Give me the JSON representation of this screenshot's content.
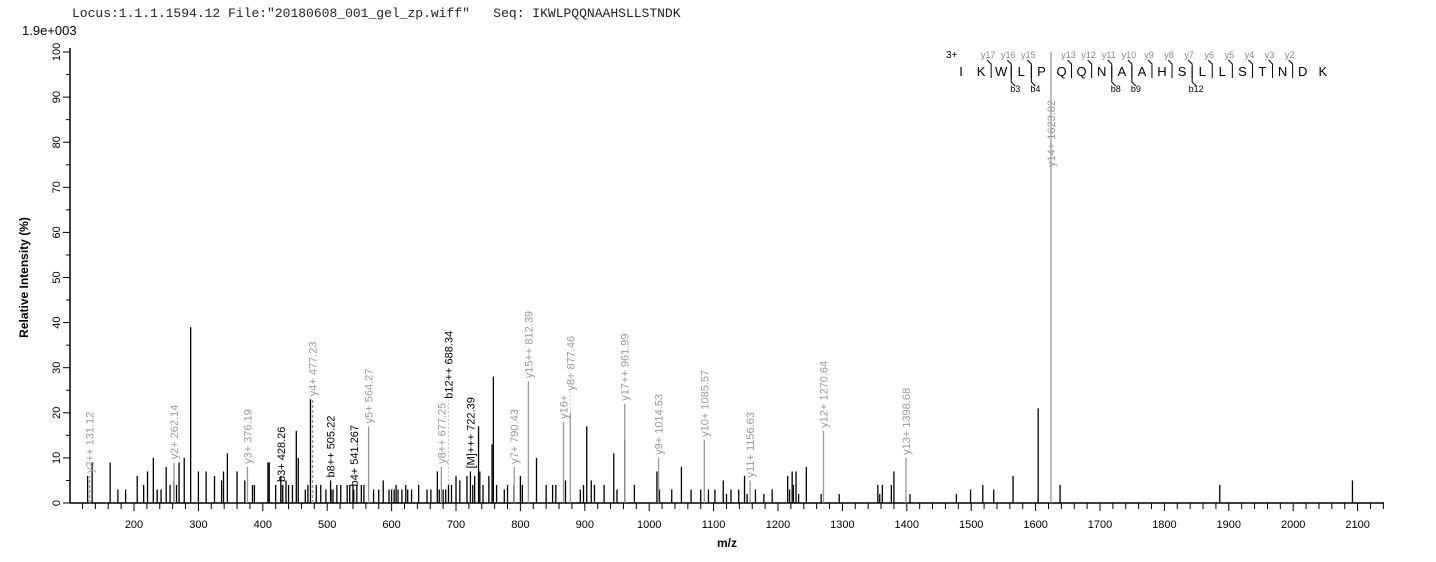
{
  "header": {
    "locus": "Locus:1.1.1.1594.12",
    "file": "File:\"20180608_001_gel_zp.wiff\"",
    "seq": "Seq: IKWLPQQNAAHSLLSTNDK",
    "scale": "1.9e+003"
  },
  "chart_data": {
    "type": "bar",
    "xlabel": "m/z",
    "ylabel": "Relative   Intensity (%)",
    "xlim": [
      100,
      2140
    ],
    "ylim": [
      0,
      100
    ],
    "xticks": [
      200,
      300,
      400,
      500,
      600,
      700,
      800,
      900,
      1000,
      1100,
      1200,
      1300,
      1400,
      1500,
      1600,
      1700,
      1800,
      1900,
      2000,
      2100
    ],
    "yticks": [
      0,
      10,
      20,
      30,
      40,
      50,
      60,
      70,
      80,
      90,
      100
    ],
    "colors": {
      "unannotated": "#000000",
      "annotated_y": "#999999",
      "annotated_b": "#000000"
    },
    "annotated_peaks": [
      {
        "mz": 131.12,
        "intensity": 6,
        "label": "y2++ 131.12",
        "type": "y",
        "dashed": true
      },
      {
        "mz": 262.14,
        "intensity": 9,
        "label": "y2+ 262.14",
        "type": "y"
      },
      {
        "mz": 376.19,
        "intensity": 8,
        "label": "y3+ 376.19",
        "type": "y"
      },
      {
        "mz": 428.26,
        "intensity": 4,
        "label": "b3+ 428.26",
        "type": "b"
      },
      {
        "mz": 477.23,
        "intensity": 23,
        "label": "y4+ 477.23",
        "type": "y",
        "dashed": true
      },
      {
        "mz": 505.22,
        "intensity": 5,
        "label": "b8++ 505.22",
        "type": "b"
      },
      {
        "mz": 541.267,
        "intensity": 3,
        "label": "b4+ 541.267",
        "type": "b"
      },
      {
        "mz": 564.27,
        "intensity": 17,
        "label": "y5+ 564.27",
        "type": "y"
      },
      {
        "mz": 677.25,
        "intensity": 8,
        "label": "y8++ 677.25",
        "type": "y"
      },
      {
        "mz": 688.34,
        "intensity": 4,
        "label": "b12++ 688.34",
        "type": "b"
      },
      {
        "mz": 722.39,
        "intensity": 7,
        "label": "[M]+++ 722.39",
        "type": "b"
      },
      {
        "mz": 790.43,
        "intensity": 8,
        "label": "y7+ 790.43",
        "type": "y"
      },
      {
        "mz": 812.39,
        "intensity": 27,
        "label": "y15++ 812.39",
        "type": "y"
      },
      {
        "mz": 866.9,
        "intensity": 18,
        "label": "y16+",
        "type": "y"
      },
      {
        "mz": 877.46,
        "intensity": 20,
        "label": "y8+ 877.46",
        "type": "y"
      },
      {
        "mz": 961.99,
        "intensity": 22,
        "label": "y17++ 961.99",
        "type": "y"
      },
      {
        "mz": 1014.53,
        "intensity": 10,
        "label": "y9+ 1014.53",
        "type": "y"
      },
      {
        "mz": 1085.57,
        "intensity": 14,
        "label": "y10+ 1085.57",
        "type": "y"
      },
      {
        "mz": 1156.63,
        "intensity": 5,
        "label": "y11+ 1156.63",
        "type": "y"
      },
      {
        "mz": 1270.64,
        "intensity": 16,
        "label": "y12+ 1270.64",
        "type": "y"
      },
      {
        "mz": 1398.68,
        "intensity": 10,
        "label": "y13+ 1398.68",
        "type": "y"
      },
      {
        "mz": 1623.82,
        "intensity": 100,
        "label": "y14+ 1623.82",
        "type": "y"
      }
    ],
    "peaks": [
      [
        128,
        6
      ],
      [
        135,
        9
      ],
      [
        163,
        9
      ],
      [
        175,
        3
      ],
      [
        187,
        3
      ],
      [
        205,
        6
      ],
      [
        215,
        4
      ],
      [
        221,
        7
      ],
      [
        230,
        10
      ],
      [
        236,
        3
      ],
      [
        242,
        3
      ],
      [
        250,
        8
      ],
      [
        256,
        4
      ],
      [
        262,
        5
      ],
      [
        266,
        4
      ],
      [
        270,
        9
      ],
      [
        278,
        10
      ],
      [
        288,
        39
      ],
      [
        300,
        7
      ],
      [
        312,
        7
      ],
      [
        325,
        6
      ],
      [
        336,
        5
      ],
      [
        339,
        7
      ],
      [
        345,
        11
      ],
      [
        360,
        7
      ],
      [
        372,
        5
      ],
      [
        384,
        4
      ],
      [
        387,
        4
      ],
      [
        408,
        9
      ],
      [
        410,
        9
      ],
      [
        420,
        4
      ],
      [
        428,
        6
      ],
      [
        431,
        4
      ],
      [
        436,
        5
      ],
      [
        440,
        4
      ],
      [
        446,
        4
      ],
      [
        452,
        16
      ],
      [
        455,
        10
      ],
      [
        466,
        3
      ],
      [
        470,
        4
      ],
      [
        474,
        23
      ],
      [
        483,
        4
      ],
      [
        490,
        4
      ],
      [
        498,
        3
      ],
      [
        506,
        3
      ],
      [
        509,
        3
      ],
      [
        515,
        4
      ],
      [
        521,
        4
      ],
      [
        531,
        4
      ],
      [
        535,
        4
      ],
      [
        540,
        4
      ],
      [
        546,
        4
      ],
      [
        553,
        4
      ],
      [
        557,
        4
      ],
      [
        572,
        3
      ],
      [
        580,
        3
      ],
      [
        587,
        5
      ],
      [
        596,
        3
      ],
      [
        600,
        3
      ],
      [
        604,
        3
      ],
      [
        607,
        4
      ],
      [
        610,
        3
      ],
      [
        616,
        3
      ],
      [
        622,
        4
      ],
      [
        625,
        3
      ],
      [
        631,
        3
      ],
      [
        642,
        4
      ],
      [
        655,
        3
      ],
      [
        661,
        3
      ],
      [
        671,
        7
      ],
      [
        674,
        3
      ],
      [
        680,
        3
      ],
      [
        684,
        3
      ],
      [
        693,
        4
      ],
      [
        700,
        6
      ],
      [
        706,
        5
      ],
      [
        717,
        6
      ],
      [
        726,
        4
      ],
      [
        729,
        6
      ],
      [
        735,
        17
      ],
      [
        737,
        7
      ],
      [
        742,
        4
      ],
      [
        751,
        6
      ],
      [
        756,
        13
      ],
      [
        758,
        28
      ],
      [
        763,
        4
      ],
      [
        775,
        3
      ],
      [
        780,
        4
      ],
      [
        790,
        4
      ],
      [
        800,
        6
      ],
      [
        803,
        4
      ],
      [
        825,
        10
      ],
      [
        840,
        4
      ],
      [
        850,
        4
      ],
      [
        855,
        4
      ],
      [
        870,
        5
      ],
      [
        893,
        3
      ],
      [
        898,
        4
      ],
      [
        903,
        17
      ],
      [
        910,
        5
      ],
      [
        915,
        4
      ],
      [
        930,
        4
      ],
      [
        945,
        11
      ],
      [
        950,
        3
      ],
      [
        962,
        14
      ],
      [
        977,
        4
      ],
      [
        1012,
        7
      ],
      [
        1016,
        3
      ],
      [
        1035,
        3
      ],
      [
        1050,
        8
      ],
      [
        1065,
        3
      ],
      [
        1080,
        3
      ],
      [
        1092,
        3
      ],
      [
        1102,
        3
      ],
      [
        1115,
        5
      ],
      [
        1120,
        2
      ],
      [
        1127,
        3
      ],
      [
        1139,
        3
      ],
      [
        1148,
        6
      ],
      [
        1152,
        2
      ],
      [
        1165,
        3
      ],
      [
        1178,
        2
      ],
      [
        1191,
        3
      ],
      [
        1215,
        6
      ],
      [
        1218,
        3
      ],
      [
        1222,
        7
      ],
      [
        1224,
        4
      ],
      [
        1228,
        7
      ],
      [
        1232,
        2
      ],
      [
        1244,
        8
      ],
      [
        1267,
        2
      ],
      [
        1295,
        2
      ],
      [
        1355,
        4
      ],
      [
        1358,
        2
      ],
      [
        1362,
        4
      ],
      [
        1376,
        4
      ],
      [
        1380,
        7
      ],
      [
        1405,
        2
      ],
      [
        1477,
        2
      ],
      [
        1499,
        3
      ],
      [
        1518,
        4
      ],
      [
        1535,
        3
      ],
      [
        1565,
        6
      ],
      [
        1604,
        21
      ],
      [
        1638,
        4
      ],
      [
        1886,
        4
      ],
      [
        2092,
        5
      ]
    ]
  },
  "sequence_panel": {
    "charge": "3+",
    "residues": [
      "I",
      "K",
      "W",
      "L",
      "P",
      "Q",
      "Q",
      "N",
      "A",
      "A",
      "H",
      "S",
      "L",
      "L",
      "S",
      "T",
      "N",
      "D",
      "K"
    ],
    "y_ions": [
      {
        "label": "y17",
        "before": 2
      },
      {
        "label": "y16",
        "before": 3
      },
      {
        "label": "y15",
        "before": 4
      },
      {
        "label": "y13",
        "before": 6
      },
      {
        "label": "y12",
        "before": 7
      },
      {
        "label": "y11",
        "before": 8
      },
      {
        "label": "y10",
        "before": 9
      },
      {
        "label": "y9",
        "before": 10
      },
      {
        "label": "y8",
        "before": 11
      },
      {
        "label": "y7",
        "before": 12
      },
      {
        "label": "y6",
        "before": 13
      },
      {
        "label": "y5",
        "before": 14
      },
      {
        "label": "y4",
        "before": 15
      },
      {
        "label": "y3",
        "before": 16
      },
      {
        "label": "y2",
        "before": 17
      }
    ],
    "b_ions": [
      {
        "label": "b3",
        "before": 3
      },
      {
        "label": "b4",
        "before": 4
      },
      {
        "label": "b8",
        "before": 8
      },
      {
        "label": "b9",
        "before": 9
      },
      {
        "label": "b12",
        "before": 12
      }
    ]
  }
}
